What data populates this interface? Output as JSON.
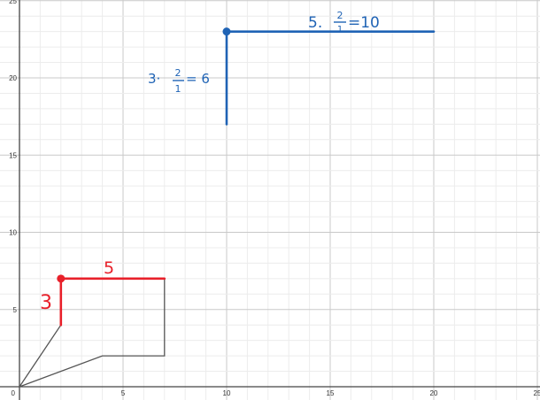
{
  "graph": {
    "axis_range": {
      "xmin": 0,
      "xmax": 25,
      "ymin": 0,
      "ymax": 25
    },
    "minor_step": 1,
    "major_step": 5,
    "x_tick_labels": [
      "0",
      "5",
      "10",
      "15",
      "20",
      "25"
    ],
    "y_tick_labels": [
      "5",
      "10",
      "15",
      "20",
      "25"
    ],
    "colors": {
      "minor_grid": "#ececec",
      "major_grid": "#c9c9c9",
      "axis": "#444444",
      "red": "#e8202a",
      "blue": "#1f63b5",
      "polygon": "#555555"
    }
  },
  "figures": {
    "small_polygon": [
      [
        0,
        0
      ],
      [
        2,
        4
      ],
      [
        2,
        7
      ],
      [
        7,
        7
      ],
      [
        7,
        2
      ],
      [
        4,
        2
      ],
      [
        0,
        0
      ]
    ],
    "red_horizontal": {
      "from": [
        2,
        7
      ],
      "to": [
        7,
        7
      ]
    },
    "red_vertical": {
      "from": [
        2,
        7
      ],
      "to": [
        2,
        4
      ]
    },
    "red_point": [
      2,
      7
    ],
    "blue_horizontal": {
      "from": [
        10,
        23
      ],
      "to": [
        20,
        23
      ]
    },
    "blue_vertical": {
      "from": [
        10,
        23
      ],
      "to": [
        10,
        17
      ]
    },
    "blue_point": [
      10,
      23
    ]
  },
  "annotations": {
    "red_horizontal_length": "5",
    "red_vertical_length": "3",
    "blue_vertical_note": "3 · 2/1 = 6",
    "blue_horizontal_note": "5 · 2/1 = 10",
    "blue_vertical_prefix": "3·",
    "blue_vertical_frac_num": "2",
    "blue_vertical_frac_den": "1",
    "blue_vertical_result": "= 6",
    "blue_horizontal_prefix": "5.",
    "blue_horizontal_frac_num": "2",
    "blue_horizontal_frac_den": "1",
    "blue_horizontal_result": "=10"
  }
}
